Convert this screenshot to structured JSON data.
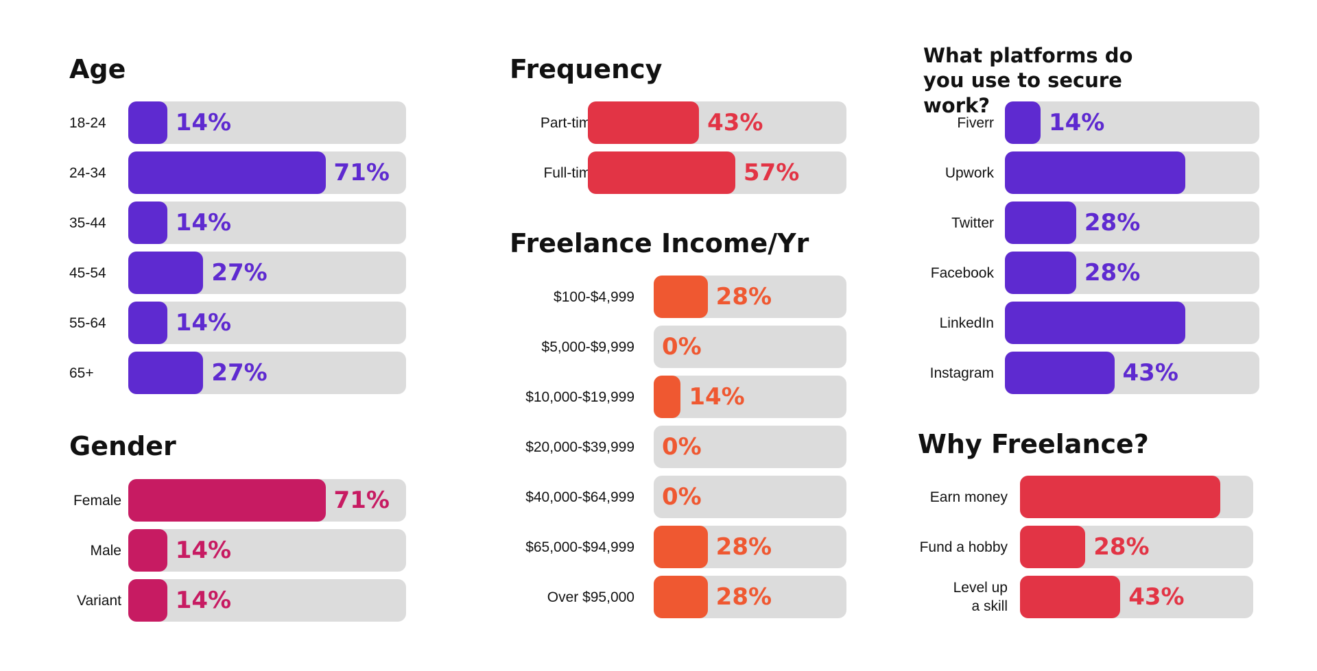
{
  "colors": {
    "purple": "#5e2ad0",
    "magenta": "#c71b62",
    "red": "#e23445",
    "orange": "#ef5831",
    "track": "#dcdcdc"
  },
  "chart_data": [
    {
      "id": "age",
      "type": "bar",
      "orientation": "horizontal",
      "title": "Age",
      "categories": [
        "18-24",
        "24-34",
        "35-44",
        "45-54",
        "55-64",
        "65+"
      ],
      "values": [
        14,
        71,
        14,
        27,
        14,
        27
      ],
      "value_labels": [
        "14%",
        "71%",
        "14%",
        "27%",
        "14%",
        "27%"
      ],
      "xlim": [
        0,
        100
      ],
      "color": "purple"
    },
    {
      "id": "gender",
      "type": "bar",
      "orientation": "horizontal",
      "title": "Gender",
      "categories": [
        "Female",
        "Male",
        "Variant"
      ],
      "values": [
        71,
        14,
        14
      ],
      "value_labels": [
        "71%",
        "14%",
        "14%"
      ],
      "xlim": [
        0,
        100
      ],
      "color": "magenta"
    },
    {
      "id": "frequency",
      "type": "bar",
      "orientation": "horizontal",
      "title": "Frequency",
      "categories": [
        "Part-time",
        "Full-time"
      ],
      "values": [
        43,
        57
      ],
      "value_labels": [
        "43%",
        "57%"
      ],
      "xlim": [
        0,
        100
      ],
      "color": "red"
    },
    {
      "id": "income",
      "type": "bar",
      "orientation": "horizontal",
      "title": "Freelance Income/Yr",
      "categories": [
        "$100-$4,999",
        "$5,000-$9,999",
        "$10,000-$19,999",
        "$20,000-$39,999",
        "$40,000-$64,999",
        "$65,000-$94,999",
        "Over $95,000"
      ],
      "values": [
        28,
        0,
        14,
        0,
        0,
        28,
        28
      ],
      "value_labels": [
        "28%",
        "0%",
        "14%",
        "0%",
        "0%",
        "28%",
        "28%"
      ],
      "xlim": [
        0,
        100
      ],
      "color": "orange"
    },
    {
      "id": "platforms",
      "type": "bar",
      "orientation": "horizontal",
      "title": "What platforms do you use to secure work?",
      "categories": [
        "Fiverr",
        "Upwork",
        "Twitter",
        "Facebook",
        "LinkedIn",
        "Instagram"
      ],
      "values": [
        14,
        71,
        28,
        28,
        71,
        43
      ],
      "value_labels": [
        "14%",
        "",
        "28%",
        "28%",
        "",
        "43%"
      ],
      "xlim": [
        0,
        100
      ],
      "color": "purple"
    },
    {
      "id": "why",
      "type": "bar",
      "orientation": "horizontal",
      "title": "Why Freelance?",
      "categories": [
        "Earn money",
        "Fund a hobby",
        "Level up\na skill"
      ],
      "values": [
        86,
        28,
        43
      ],
      "value_labels": [
        "",
        "28%",
        "43%"
      ],
      "xlim": [
        0,
        100
      ],
      "color": "red"
    }
  ]
}
